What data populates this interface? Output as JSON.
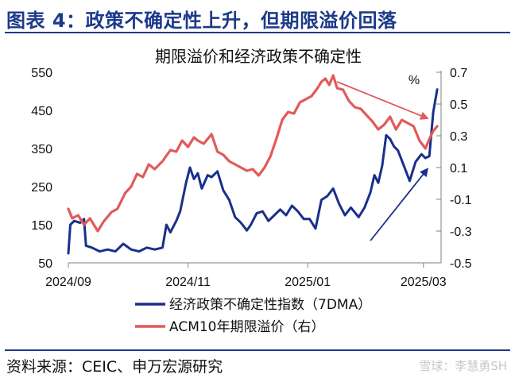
{
  "header": {
    "figure_title": "图表 4：政策不确定性上升，但期限溢价回落"
  },
  "footer": {
    "source": "资料来源：CEIC、申万宏源研究",
    "watermark": "雪球：李慧勇SH"
  },
  "chart_data": {
    "type": "line",
    "title": "期限溢价和经济政策不确定性",
    "x_tick_labels": [
      "2024/09",
      "2024/11",
      "2025/01",
      "2025/03"
    ],
    "x_tick_dates": [
      "2024-09-01",
      "2024-11-01",
      "2025-01-01",
      "2025-03-01"
    ],
    "xlim": [
      "2024-09-01",
      "2025-03-10"
    ],
    "y_left": {
      "ticks": [
        50,
        150,
        250,
        350,
        450,
        550
      ],
      "ylim": [
        50,
        550
      ]
    },
    "y_right": {
      "ticks": [
        -0.5,
        -0.3,
        -0.1,
        0.1,
        0.3,
        0.5,
        0.7
      ],
      "labels": [
        "-0.5",
        "-0.3",
        "-0.1",
        "0.1",
        "0.3",
        "0.5",
        "0.7"
      ],
      "ylim": [
        -0.5,
        0.7
      ],
      "unit": "%"
    },
    "legend_position": "bottom",
    "series": [
      {
        "name": "经济政策不确定性指数（7DMA）",
        "axis": "left",
        "color": "#1a2f8c",
        "points": [
          [
            "2024-09-01",
            75
          ],
          [
            "2024-09-02",
            150
          ],
          [
            "2024-09-04",
            160
          ],
          [
            "2024-09-07",
            155
          ],
          [
            "2024-09-09",
            165
          ],
          [
            "2024-09-10",
            95
          ],
          [
            "2024-09-13",
            90
          ],
          [
            "2024-09-17",
            80
          ],
          [
            "2024-09-21",
            85
          ],
          [
            "2024-09-25",
            80
          ],
          [
            "2024-09-29",
            100
          ],
          [
            "2024-10-03",
            85
          ],
          [
            "2024-10-07",
            80
          ],
          [
            "2024-10-11",
            90
          ],
          [
            "2024-10-15",
            85
          ],
          [
            "2024-10-19",
            90
          ],
          [
            "2024-10-21",
            150
          ],
          [
            "2024-10-23",
            130
          ],
          [
            "2024-10-26",
            160
          ],
          [
            "2024-10-28",
            185
          ],
          [
            "2024-10-31",
            260
          ],
          [
            "2024-11-02",
            300
          ],
          [
            "2024-11-04",
            270
          ],
          [
            "2024-11-06",
            285
          ],
          [
            "2024-11-08",
            245
          ],
          [
            "2024-11-11",
            280
          ],
          [
            "2024-11-13",
            275
          ],
          [
            "2024-11-16",
            290
          ],
          [
            "2024-11-19",
            240
          ],
          [
            "2024-11-22",
            215
          ],
          [
            "2024-11-25",
            170
          ],
          [
            "2024-11-28",
            155
          ],
          [
            "2024-12-01",
            135
          ],
          [
            "2024-12-03",
            150
          ],
          [
            "2024-12-06",
            180
          ],
          [
            "2024-12-09",
            185
          ],
          [
            "2024-12-12",
            160
          ],
          [
            "2024-12-15",
            175
          ],
          [
            "2024-12-18",
            190
          ],
          [
            "2024-12-21",
            175
          ],
          [
            "2024-12-24",
            200
          ],
          [
            "2024-12-27",
            185
          ],
          [
            "2024-12-30",
            165
          ],
          [
            "2025-01-02",
            165
          ],
          [
            "2025-01-05",
            140
          ],
          [
            "2025-01-08",
            215
          ],
          [
            "2025-01-11",
            225
          ],
          [
            "2025-01-14",
            245
          ],
          [
            "2025-01-17",
            205
          ],
          [
            "2025-01-20",
            175
          ],
          [
            "2025-01-23",
            195
          ],
          [
            "2025-01-27",
            170
          ],
          [
            "2025-01-30",
            195
          ],
          [
            "2025-02-02",
            235
          ],
          [
            "2025-02-04",
            280
          ],
          [
            "2025-02-06",
            260
          ],
          [
            "2025-02-08",
            305
          ],
          [
            "2025-02-10",
            385
          ],
          [
            "2025-02-12",
            375
          ],
          [
            "2025-02-14",
            355
          ],
          [
            "2025-02-16",
            345
          ],
          [
            "2025-02-19",
            305
          ],
          [
            "2025-02-22",
            265
          ],
          [
            "2025-02-25",
            315
          ],
          [
            "2025-02-28",
            335
          ],
          [
            "2025-03-02",
            325
          ],
          [
            "2025-03-04",
            330
          ],
          [
            "2025-03-06",
            445
          ],
          [
            "2025-03-08",
            505
          ]
        ]
      },
      {
        "name": "ACM10年期限溢价（右）",
        "axis": "right",
        "color": "#e25a5a",
        "points": [
          [
            "2024-09-01",
            -0.16
          ],
          [
            "2024-09-03",
            -0.22
          ],
          [
            "2024-09-06",
            -0.2
          ],
          [
            "2024-09-09",
            -0.26
          ],
          [
            "2024-09-12",
            -0.22
          ],
          [
            "2024-09-16",
            -0.3
          ],
          [
            "2024-09-19",
            -0.24
          ],
          [
            "2024-09-23",
            -0.18
          ],
          [
            "2024-09-26",
            -0.16
          ],
          [
            "2024-09-30",
            -0.06
          ],
          [
            "2024-10-03",
            -0.02
          ],
          [
            "2024-10-06",
            0.06
          ],
          [
            "2024-10-09",
            0.04
          ],
          [
            "2024-10-12",
            0.12
          ],
          [
            "2024-10-15",
            0.09
          ],
          [
            "2024-10-19",
            0.14
          ],
          [
            "2024-10-23",
            0.21
          ],
          [
            "2024-10-26",
            0.2
          ],
          [
            "2024-10-29",
            0.27
          ],
          [
            "2024-11-01",
            0.23
          ],
          [
            "2024-11-04",
            0.29
          ],
          [
            "2024-11-06",
            0.27
          ],
          [
            "2024-11-09",
            0.25
          ],
          [
            "2024-11-13",
            0.31
          ],
          [
            "2024-11-16",
            0.2
          ],
          [
            "2024-11-19",
            0.18
          ],
          [
            "2024-11-22",
            0.14
          ],
          [
            "2024-11-25",
            0.12
          ],
          [
            "2024-11-28",
            0.1
          ],
          [
            "2024-12-01",
            0.08
          ],
          [
            "2024-12-04",
            0.09
          ],
          [
            "2024-12-07",
            0.05
          ],
          [
            "2024-12-10",
            0.1
          ],
          [
            "2024-12-13",
            0.17
          ],
          [
            "2024-12-16",
            0.28
          ],
          [
            "2024-12-19",
            0.4
          ],
          [
            "2024-12-22",
            0.45
          ],
          [
            "2024-12-25",
            0.44
          ],
          [
            "2024-12-28",
            0.51
          ],
          [
            "2024-12-31",
            0.53
          ],
          [
            "2025-01-03",
            0.55
          ],
          [
            "2025-01-06",
            0.6
          ],
          [
            "2025-01-08",
            0.64
          ],
          [
            "2025-01-10",
            0.66
          ],
          [
            "2025-01-12",
            0.62
          ],
          [
            "2025-01-14",
            0.68
          ],
          [
            "2025-01-16",
            0.6
          ],
          [
            "2025-01-19",
            0.59
          ],
          [
            "2025-01-22",
            0.52
          ],
          [
            "2025-01-25",
            0.48
          ],
          [
            "2025-01-28",
            0.47
          ],
          [
            "2025-01-31",
            0.43
          ],
          [
            "2025-02-03",
            0.39
          ],
          [
            "2025-02-06",
            0.34
          ],
          [
            "2025-02-09",
            0.37
          ],
          [
            "2025-02-12",
            0.42
          ],
          [
            "2025-02-15",
            0.34
          ],
          [
            "2025-02-18",
            0.4
          ],
          [
            "2025-02-21",
            0.38
          ],
          [
            "2025-02-24",
            0.36
          ],
          [
            "2025-02-27",
            0.27
          ],
          [
            "2025-03-02",
            0.22
          ],
          [
            "2025-03-04",
            0.28
          ],
          [
            "2025-03-06",
            0.33
          ],
          [
            "2025-03-08",
            0.36
          ]
        ]
      }
    ],
    "annotations": [
      {
        "type": "arrow",
        "color": "#e25a5a",
        "from": [
          "2025-01-16",
          0.64
        ],
        "to": [
          "2025-03-03",
          0.41
        ]
      },
      {
        "type": "arrow",
        "color": "#1a2f8c",
        "from": [
          "2025-02-02",
          -0.36
        ],
        "to": [
          "2025-03-03",
          0.09
        ]
      }
    ]
  }
}
